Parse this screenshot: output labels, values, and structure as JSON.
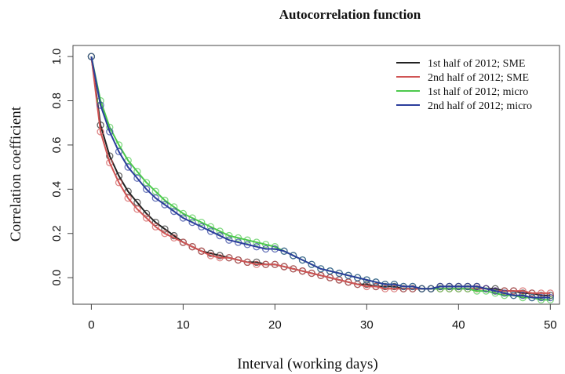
{
  "chart_data": {
    "type": "line",
    "title": "Autocorrelation function",
    "x_label": "Interval (working days)",
    "y_label": "Correlation coefficient",
    "x": [
      0,
      1,
      2,
      3,
      4,
      5,
      6,
      7,
      8,
      9,
      10,
      11,
      12,
      13,
      14,
      15,
      16,
      17,
      18,
      19,
      20,
      21,
      22,
      23,
      24,
      25,
      26,
      27,
      28,
      29,
      30,
      31,
      32,
      33,
      34,
      35,
      36,
      37,
      38,
      39,
      40,
      41,
      42,
      43,
      44,
      45,
      46,
      47,
      48,
      49,
      50
    ],
    "xlim": [
      -2,
      51
    ],
    "xticks": [
      0,
      10,
      20,
      30,
      40,
      50
    ],
    "ylim": [
      -0.12,
      1.05
    ],
    "yticks": [
      {
        "value": 0,
        "label": "0.0"
      },
      {
        "value": 0.2,
        "label": "0.2"
      },
      {
        "value": 0.4,
        "label": "0.4"
      },
      {
        "value": 0.6,
        "label": "0.6"
      },
      {
        "value": 0.8,
        "label": "0.8"
      },
      {
        "value": 1,
        "label": "1.0"
      }
    ],
    "legend": "top-right",
    "series": [
      {
        "name": "1st half of 2012; SME",
        "color": "#222222",
        "values": [
          1.0,
          0.69,
          0.55,
          0.46,
          0.39,
          0.34,
          0.29,
          0.25,
          0.22,
          0.19,
          0.16,
          0.14,
          0.12,
          0.11,
          0.1,
          0.09,
          0.08,
          0.07,
          0.07,
          0.06,
          0.06,
          0.05,
          0.04,
          0.03,
          0.02,
          0.01,
          0.0,
          -0.01,
          -0.02,
          -0.03,
          -0.03,
          -0.04,
          -0.04,
          -0.04,
          -0.05,
          -0.05,
          -0.05,
          -0.05,
          -0.04,
          -0.04,
          -0.04,
          -0.04,
          -0.04,
          -0.05,
          -0.05,
          -0.06,
          -0.06,
          -0.07,
          -0.07,
          -0.08,
          -0.08
        ]
      },
      {
        "name": "2nd half of 2012; SME",
        "color": "#d05454",
        "values": [
          1.0,
          0.66,
          0.52,
          0.43,
          0.36,
          0.31,
          0.27,
          0.23,
          0.2,
          0.18,
          0.16,
          0.14,
          0.12,
          0.1,
          0.09,
          0.09,
          0.08,
          0.07,
          0.06,
          0.06,
          0.06,
          0.05,
          0.04,
          0.03,
          0.02,
          0.01,
          0.0,
          -0.01,
          -0.02,
          -0.03,
          -0.04,
          -0.04,
          -0.05,
          -0.05,
          -0.05,
          -0.05,
          -0.05,
          -0.05,
          -0.05,
          -0.05,
          -0.05,
          -0.05,
          -0.05,
          -0.05,
          -0.06,
          -0.06,
          -0.06,
          -0.06,
          -0.07,
          -0.07,
          -0.07
        ]
      },
      {
        "name": "1st half of 2012; micro",
        "color": "#4cc94c",
        "values": [
          1.0,
          0.8,
          0.68,
          0.6,
          0.53,
          0.48,
          0.43,
          0.39,
          0.35,
          0.32,
          0.29,
          0.27,
          0.25,
          0.23,
          0.21,
          0.19,
          0.18,
          0.17,
          0.16,
          0.15,
          0.14,
          0.12,
          0.1,
          0.08,
          0.06,
          0.04,
          0.03,
          0.02,
          0.01,
          0.0,
          -0.01,
          -0.02,
          -0.03,
          -0.03,
          -0.04,
          -0.04,
          -0.05,
          -0.05,
          -0.05,
          -0.05,
          -0.05,
          -0.05,
          -0.06,
          -0.06,
          -0.07,
          -0.08,
          -0.08,
          -0.09,
          -0.09,
          -0.1,
          -0.1
        ]
      },
      {
        "name": "2nd half of 2012; micro",
        "color": "#2b3d9c",
        "values": [
          1.0,
          0.78,
          0.66,
          0.57,
          0.5,
          0.45,
          0.4,
          0.36,
          0.33,
          0.3,
          0.27,
          0.25,
          0.23,
          0.21,
          0.19,
          0.17,
          0.16,
          0.15,
          0.14,
          0.13,
          0.13,
          0.12,
          0.1,
          0.08,
          0.06,
          0.04,
          0.03,
          0.02,
          0.01,
          0.0,
          -0.01,
          -0.02,
          -0.03,
          -0.03,
          -0.04,
          -0.04,
          -0.05,
          -0.05,
          -0.04,
          -0.04,
          -0.04,
          -0.04,
          -0.04,
          -0.05,
          -0.06,
          -0.07,
          -0.08,
          -0.08,
          -0.09,
          -0.09,
          -0.09
        ]
      }
    ]
  }
}
